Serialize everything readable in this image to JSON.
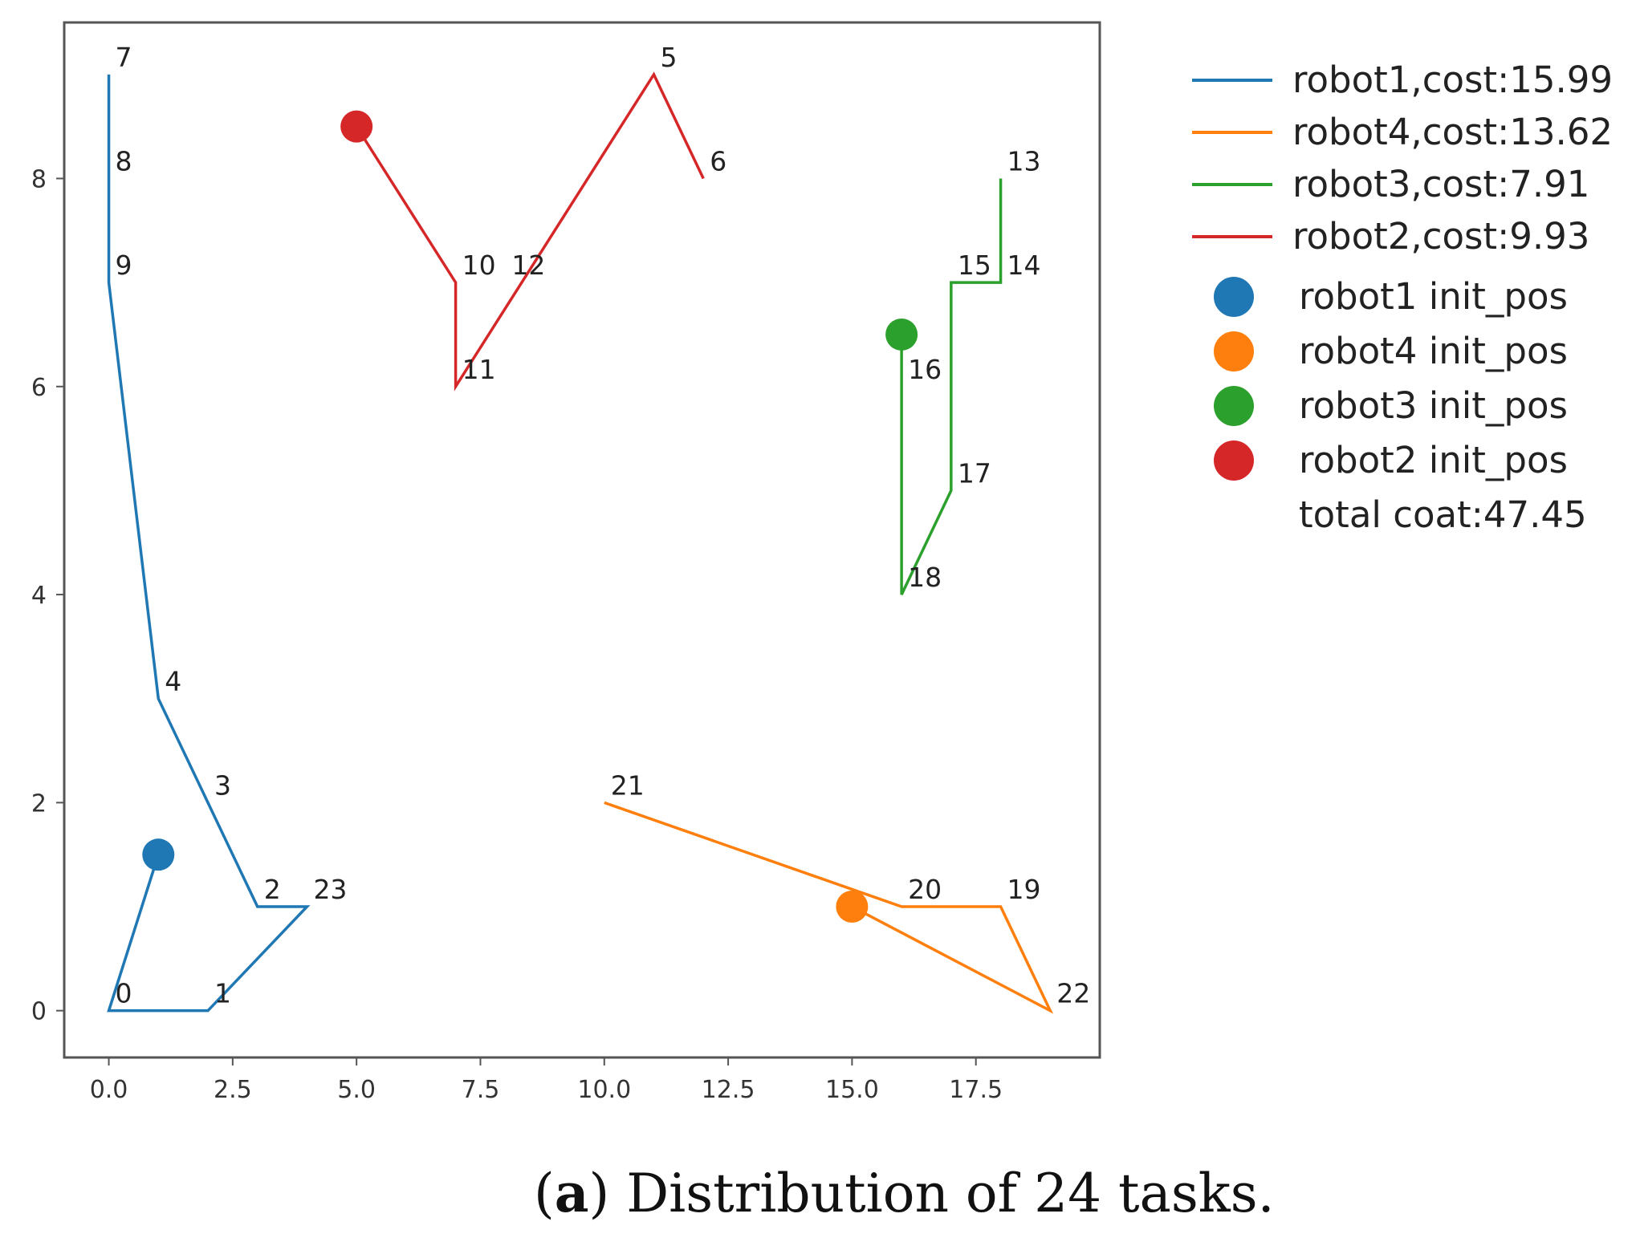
{
  "chart_data": {
    "type": "line",
    "title": "",
    "xlabel": "",
    "ylabel": "",
    "xlim": [
      -0.9,
      20.0
    ],
    "ylim": [
      -0.45,
      9.5
    ],
    "xticks": [
      0.0,
      2.5,
      5.0,
      7.5,
      10.0,
      12.5,
      15.0,
      17.5
    ],
    "xtick_labels": [
      "0.0",
      "2.5",
      "5.0",
      "7.5",
      "10.0",
      "12.5",
      "15.0",
      "17.5"
    ],
    "yticks": [
      0,
      2,
      4,
      6,
      8
    ],
    "ytick_labels": [
      "0",
      "2",
      "4",
      "6",
      "8"
    ],
    "grid": false,
    "legend_position": "outside-right-top",
    "series": [
      {
        "name": "robot1,cost:15.99",
        "color": "#1f77b4",
        "x": [
          1,
          0,
          2,
          4,
          3,
          1,
          0,
          0,
          0
        ],
        "y": [
          1.5,
          0,
          0,
          1,
          1,
          3,
          7,
          8,
          9
        ]
      },
      {
        "name": "robot4,cost:13.62",
        "color": "#ff7f0e",
        "x": [
          15,
          19,
          18,
          16,
          10
        ],
        "y": [
          1,
          0,
          1,
          1,
          2
        ]
      },
      {
        "name": "robot3,cost:7.91",
        "color": "#2ca02c",
        "x": [
          16,
          16,
          17,
          17,
          18,
          18
        ],
        "y": [
          6.5,
          4,
          5,
          7,
          7,
          8
        ]
      },
      {
        "name": "robot2,cost:9.93",
        "color": "#d62728",
        "x": [
          5,
          7,
          7,
          11,
          12
        ],
        "y": [
          8.5,
          7,
          6,
          9,
          8
        ]
      }
    ],
    "init_positions": [
      {
        "name": "robot1 init_pos",
        "color": "#1f77b4",
        "x": 1,
        "y": 1.5
      },
      {
        "name": "robot4 init_pos",
        "color": "#ff7f0e",
        "x": 15,
        "y": 1
      },
      {
        "name": "robot3 init_pos",
        "color": "#2ca02c",
        "x": 16,
        "y": 6.5
      },
      {
        "name": "robot2 init_pos",
        "color": "#d62728",
        "x": 5,
        "y": 8.5
      }
    ],
    "task_points": [
      {
        "label": "0",
        "x": 0,
        "y": 0
      },
      {
        "label": "1",
        "x": 2,
        "y": 0
      },
      {
        "label": "2",
        "x": 3,
        "y": 1
      },
      {
        "label": "3",
        "x": 2,
        "y": 2
      },
      {
        "label": "4",
        "x": 1,
        "y": 3
      },
      {
        "label": "5",
        "x": 11,
        "y": 9
      },
      {
        "label": "6",
        "x": 12,
        "y": 8
      },
      {
        "label": "7",
        "x": 0,
        "y": 9
      },
      {
        "label": "8",
        "x": 0,
        "y": 8
      },
      {
        "label": "9",
        "x": 0,
        "y": 7
      },
      {
        "label": "10",
        "x": 7,
        "y": 7
      },
      {
        "label": "11",
        "x": 7,
        "y": 6
      },
      {
        "label": "12",
        "x": 8,
        "y": 7
      },
      {
        "label": "13",
        "x": 18,
        "y": 8
      },
      {
        "label": "14",
        "x": 18,
        "y": 7
      },
      {
        "label": "15",
        "x": 17,
        "y": 7
      },
      {
        "label": "16",
        "x": 16,
        "y": 6
      },
      {
        "label": "17",
        "x": 17,
        "y": 5
      },
      {
        "label": "18",
        "x": 16,
        "y": 4
      },
      {
        "label": "19",
        "x": 18,
        "y": 1
      },
      {
        "label": "20",
        "x": 16,
        "y": 1
      },
      {
        "label": "21",
        "x": 10,
        "y": 2
      },
      {
        "label": "22",
        "x": 19,
        "y": 0
      },
      {
        "label": "23",
        "x": 4,
        "y": 1
      }
    ],
    "total_cost_label": "total coat:47.45"
  },
  "caption": {
    "letter": "a",
    "open_paren": "(",
    "close_paren": ")",
    "text": " Distribution of 24 tasks."
  }
}
